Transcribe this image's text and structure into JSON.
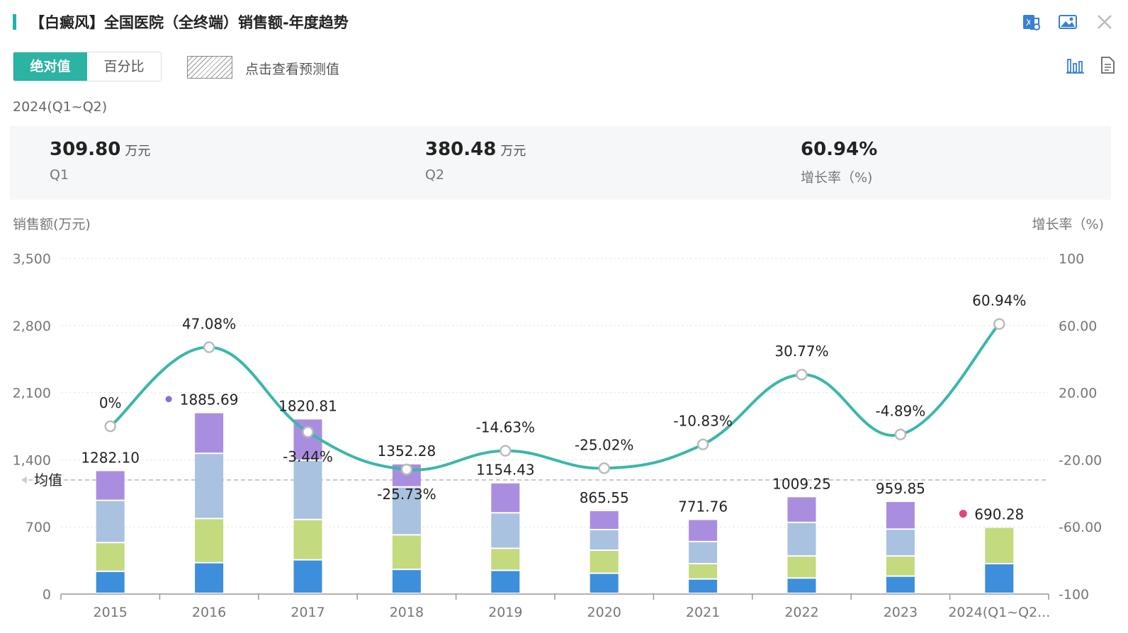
{
  "header": {
    "title": "【白癜风】全国医院（全终端）销售额-年度趋势",
    "icons": [
      "excel-export-icon",
      "image-export-icon",
      "close-icon"
    ]
  },
  "toolbar": {
    "absolute_label": "绝对值",
    "percent_label": "百分比",
    "forecast_label": "点击查看预测值",
    "view_icons": [
      "bar-chart-icon",
      "document-icon"
    ]
  },
  "period": "2024(Q1~Q2)",
  "stats": [
    {
      "value": "309.80",
      "unit": "万元",
      "label": "Q1"
    },
    {
      "value": "380.48",
      "unit": "万元",
      "label": "Q2"
    },
    {
      "value": "60.94%",
      "unit": "",
      "label": "增长率（%)"
    }
  ],
  "chart_data": {
    "type": "bar",
    "stacked": true,
    "left_axis_title": "销售额(万元)",
    "right_axis_title": "增长率（%)",
    "left_ticks": [
      "3,500",
      "2,800",
      "2,100",
      "1,400",
      "700",
      "0"
    ],
    "right_ticks": [
      "100",
      "60.00",
      "20.00",
      "-20.00",
      "-60.00",
      "-100"
    ],
    "ylim_left": [
      0,
      3500
    ],
    "ylim_right": [
      -100,
      100
    ],
    "average_label": "均值",
    "average_value": 1190,
    "categories": [
      "2015",
      "2016",
      "2017",
      "2018",
      "2019",
      "2020",
      "2021",
      "2022",
      "2023",
      "2024(Q1~Q2..."
    ],
    "totals": [
      "1282.10",
      "1885.69",
      "1820.81",
      "1352.28",
      "1154.43",
      "865.55",
      "771.76",
      "1009.25",
      "959.85",
      "690.28"
    ],
    "series": [
      {
        "color": "#3d8fdb",
        "values": [
          230,
          320,
          350,
          250,
          240,
          210,
          150,
          160,
          180,
          310
        ]
      },
      {
        "color": "#c3da7e",
        "values": [
          300,
          460,
          420,
          360,
          230,
          240,
          160,
          230,
          210,
          380
        ]
      },
      {
        "color": "#a8c2e0",
        "values": [
          440,
          680,
          620,
          500,
          370,
          215,
          230,
          350,
          280,
          0
        ]
      },
      {
        "color": "#a98ee0",
        "values": [
          312,
          426,
          431,
          242,
          314,
          200,
          232,
          269,
          290,
          0
        ]
      }
    ],
    "growth": {
      "values": [
        0,
        47.08,
        -3.44,
        -25.73,
        -14.63,
        -25.02,
        -10.83,
        30.77,
        -4.89,
        60.94
      ],
      "labels": [
        "0%",
        "47.08%",
        "-3.44%",
        "-25.73%",
        "-14.63%",
        "-25.02%",
        "-10.83%",
        "30.77%",
        "-4.89%",
        "60.94%"
      ],
      "color": "#3bb7a9"
    },
    "colors": {
      "accent": "#2bb3a3",
      "grid": "#e6e6e6",
      "marker_purple": "#8a6fd1",
      "marker_red": "#e0457a"
    }
  }
}
